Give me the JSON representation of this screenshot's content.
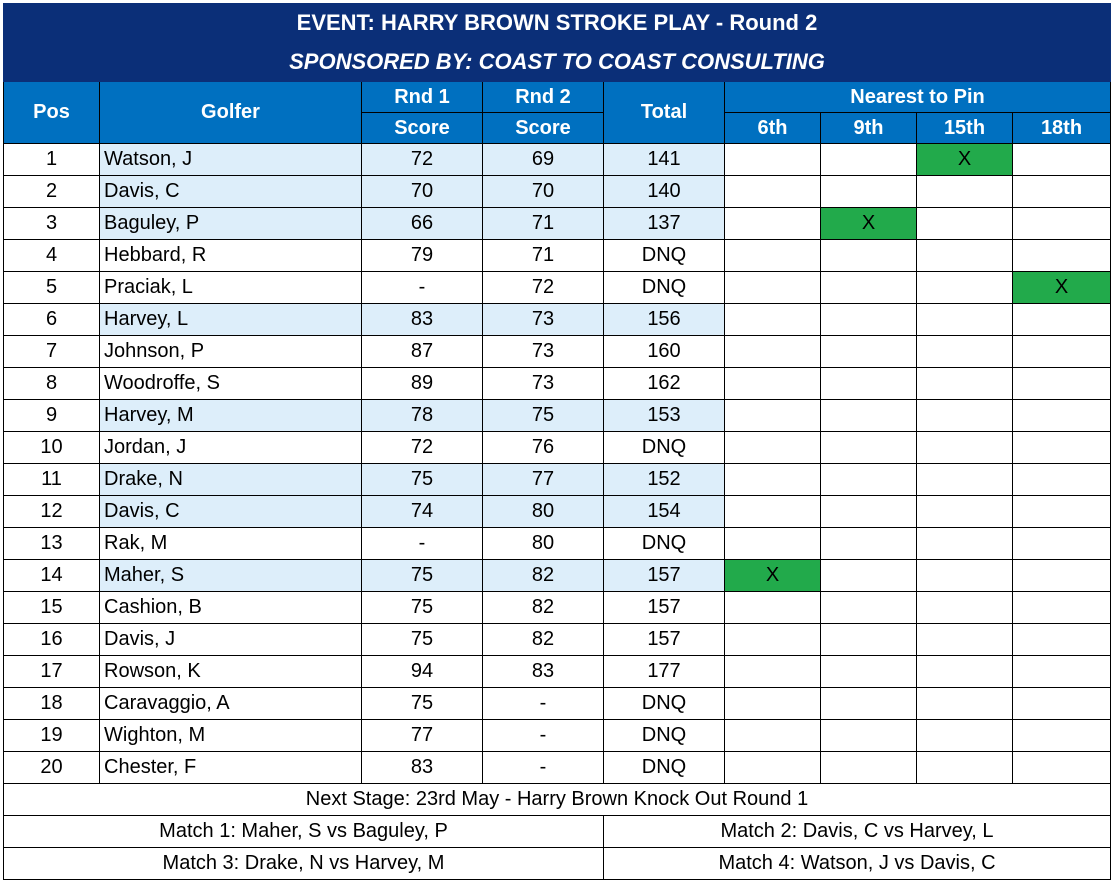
{
  "title": "EVENT: HARRY BROWN STROKE PLAY - Round 2",
  "sponsor": "SPONSORED BY: COAST TO COAST CONSULTING",
  "headers": {
    "pos": "Pos",
    "golfer": "Golfer",
    "rnd1_top": "Rnd 1",
    "rnd1_bottom": "Score",
    "rnd2_top": "Rnd 2",
    "rnd2_bottom": "Score",
    "total": "Total",
    "nearest_to_pin": "Nearest to Pin",
    "holes": [
      "6th",
      "9th",
      "15th",
      "18th"
    ]
  },
  "colors": {
    "title_bg": "#0b2f78",
    "header_bg": "#0070c0",
    "highlight_bg": "#ddeefa",
    "pin_win_bg": "#22aa4b"
  },
  "rows": [
    {
      "pos": "1",
      "golfer": "Watson, J",
      "rnd1": "72",
      "rnd2": "69",
      "total": "141",
      "highlight": true,
      "pins": [
        "",
        "",
        "X",
        ""
      ]
    },
    {
      "pos": "2",
      "golfer": "Davis, C",
      "rnd1": "70",
      "rnd2": "70",
      "total": "140",
      "highlight": true,
      "pins": [
        "",
        "",
        "",
        ""
      ]
    },
    {
      "pos": "3",
      "golfer": "Baguley, P",
      "rnd1": "66",
      "rnd2": "71",
      "total": "137",
      "highlight": true,
      "pins": [
        "",
        "X",
        "",
        ""
      ]
    },
    {
      "pos": "4",
      "golfer": "Hebbard, R",
      "rnd1": "79",
      "rnd2": "71",
      "total": "DNQ",
      "highlight": false,
      "pins": [
        "",
        "",
        "",
        ""
      ]
    },
    {
      "pos": "5",
      "golfer": "Praciak, L",
      "rnd1": "-",
      "rnd2": "72",
      "total": "DNQ",
      "highlight": false,
      "pins": [
        "",
        "",
        "",
        "X"
      ]
    },
    {
      "pos": "6",
      "golfer": "Harvey, L",
      "rnd1": "83",
      "rnd2": "73",
      "total": "156",
      "highlight": true,
      "pins": [
        "",
        "",
        "",
        ""
      ]
    },
    {
      "pos": "7",
      "golfer": "Johnson, P",
      "rnd1": "87",
      "rnd2": "73",
      "total": "160",
      "highlight": false,
      "pins": [
        "",
        "",
        "",
        ""
      ]
    },
    {
      "pos": "8",
      "golfer": "Woodroffe, S",
      "rnd1": "89",
      "rnd2": "73",
      "total": "162",
      "highlight": false,
      "pins": [
        "",
        "",
        "",
        ""
      ]
    },
    {
      "pos": "9",
      "golfer": "Harvey, M",
      "rnd1": "78",
      "rnd2": "75",
      "total": "153",
      "highlight": true,
      "pins": [
        "",
        "",
        "",
        ""
      ]
    },
    {
      "pos": "10",
      "golfer": "Jordan, J",
      "rnd1": "72",
      "rnd2": "76",
      "total": "DNQ",
      "highlight": false,
      "pins": [
        "",
        "",
        "",
        ""
      ]
    },
    {
      "pos": "11",
      "golfer": "Drake, N",
      "rnd1": "75",
      "rnd2": "77",
      "total": "152",
      "highlight": true,
      "pins": [
        "",
        "",
        "",
        ""
      ]
    },
    {
      "pos": "12",
      "golfer": "Davis, C",
      "rnd1": "74",
      "rnd2": "80",
      "total": "154",
      "highlight": true,
      "pins": [
        "",
        "",
        "",
        ""
      ]
    },
    {
      "pos": "13",
      "golfer": "Rak, M",
      "rnd1": "-",
      "rnd2": "80",
      "total": "DNQ",
      "highlight": false,
      "pins": [
        "",
        "",
        "",
        ""
      ]
    },
    {
      "pos": "14",
      "golfer": "Maher, S",
      "rnd1": "75",
      "rnd2": "82",
      "total": "157",
      "highlight": true,
      "pins": [
        "X",
        "",
        "",
        ""
      ]
    },
    {
      "pos": "15",
      "golfer": "Cashion, B",
      "rnd1": "75",
      "rnd2": "82",
      "total": "157",
      "highlight": false,
      "pins": [
        "",
        "",
        "",
        ""
      ]
    },
    {
      "pos": "16",
      "golfer": "Davis, J",
      "rnd1": "75",
      "rnd2": "82",
      "total": "157",
      "highlight": false,
      "pins": [
        "",
        "",
        "",
        ""
      ]
    },
    {
      "pos": "17",
      "golfer": "Rowson, K",
      "rnd1": "94",
      "rnd2": "83",
      "total": "177",
      "highlight": false,
      "pins": [
        "",
        "",
        "",
        ""
      ]
    },
    {
      "pos": "18",
      "golfer": "Caravaggio, A",
      "rnd1": "75",
      "rnd2": "-",
      "total": "DNQ",
      "highlight": false,
      "pins": [
        "",
        "",
        "",
        ""
      ]
    },
    {
      "pos": "19",
      "golfer": "Wighton, M",
      "rnd1": "77",
      "rnd2": "-",
      "total": "DNQ",
      "highlight": false,
      "pins": [
        "",
        "",
        "",
        ""
      ]
    },
    {
      "pos": "20",
      "golfer": "Chester, F",
      "rnd1": "83",
      "rnd2": "-",
      "total": "DNQ",
      "highlight": false,
      "pins": [
        "",
        "",
        "",
        ""
      ]
    }
  ],
  "footer": {
    "next_stage": "Next Stage: 23rd May - Harry Brown Knock Out Round 1",
    "matches": [
      "Match 1: Maher, S  vs  Baguley, P",
      "Match 2: Davis, C  vs  Harvey, L",
      "Match 3: Drake, N  vs  Harvey, M",
      "Match 4: Watson, J  vs  Davis, C"
    ]
  }
}
